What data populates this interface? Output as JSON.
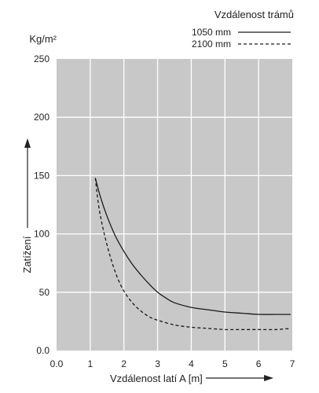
{
  "chart_data": {
    "type": "line",
    "title": "",
    "ylabel": "Zatížení",
    "yunit": "Kg/m²",
    "xlabel": "Vzdálenost latí A [m]",
    "xlim": [
      0,
      7
    ],
    "ylim": [
      0,
      250
    ],
    "x_ticks": [
      "0.0",
      "1",
      "2",
      "3",
      "4",
      "5",
      "6",
      "7"
    ],
    "y_ticks": [
      "0.0",
      "50",
      "100",
      "150",
      "200",
      "250"
    ],
    "grid": true,
    "legend": {
      "title": "Vzdálenost trámů",
      "position": "top-right"
    },
    "series": [
      {
        "name": "1050 mm",
        "style": "solid",
        "x": [
          1.15,
          1.3,
          1.5,
          1.75,
          2.0,
          2.25,
          2.5,
          2.75,
          3.0,
          3.25,
          3.5,
          4.0,
          4.5,
          5.0,
          5.5,
          6.0,
          6.5,
          6.95
        ],
        "y": [
          148,
          132,
          115,
          98,
          85,
          74,
          65,
          57,
          50,
          45,
          41,
          37,
          35,
          33,
          32,
          31,
          31,
          31
        ]
      },
      {
        "name": "2100 mm",
        "style": "dashed",
        "x": [
          1.15,
          1.25,
          1.4,
          1.6,
          1.8,
          2.0,
          2.25,
          2.5,
          2.75,
          3.0,
          3.5,
          4.0,
          4.5,
          5.0,
          5.5,
          6.0,
          6.5,
          6.95
        ],
        "y": [
          148,
          124,
          102,
          80,
          63,
          51,
          41,
          34,
          29,
          26,
          22,
          20,
          19,
          18,
          18,
          18,
          18,
          19
        ]
      }
    ]
  },
  "colors": {
    "plot_bg": "#c8c8c8",
    "grid": "#ffffff",
    "line": "#1a1a1a",
    "text": "#222222"
  }
}
